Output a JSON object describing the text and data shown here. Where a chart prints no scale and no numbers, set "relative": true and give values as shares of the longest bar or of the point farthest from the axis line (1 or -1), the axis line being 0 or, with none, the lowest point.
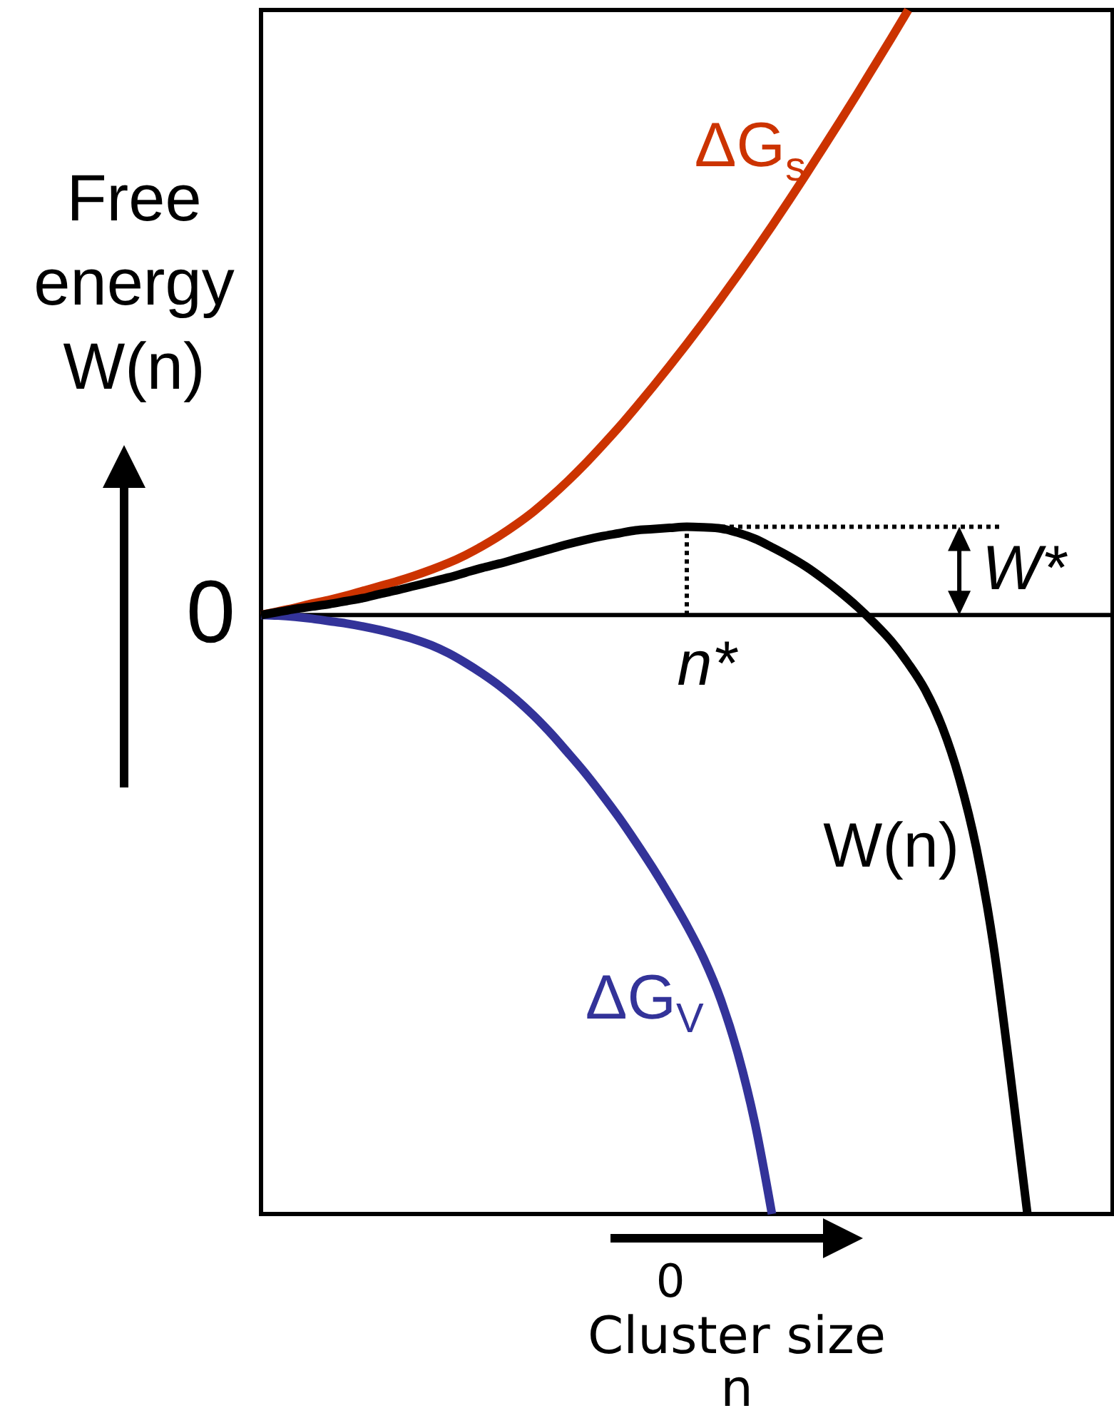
{
  "chart_data": {
    "type": "line",
    "relative": true,
    "xlabel": "Cluster size n",
    "ylabel": "Free energy W(n)",
    "line_style": "solid",
    "categories": [
      null,
      null,
      null,
      null,
      null,
      null,
      null,
      null,
      null,
      null,
      null,
      null,
      null,
      null,
      null,
      null,
      null,
      null,
      null,
      null,
      null,
      null,
      null,
      null,
      null,
      null,
      null,
      null,
      null,
      null,
      null,
      null,
      null,
      null,
      null,
      null,
      null,
      null,
      null,
      null,
      null,
      null,
      null,
      null,
      null,
      null,
      null,
      null,
      null,
      null,
      null
    ],
    "series": [
      {
        "name": "ΔG$_{s}$",
        "color": "#cc3300",
        "values": [
          0,
          0.006,
          0.012,
          0.019,
          0.025,
          0.032,
          0.04,
          0.048,
          0.056,
          0.065,
          0.075,
          0.086,
          0.099,
          0.114,
          0.131,
          0.15,
          0.171,
          0.195,
          0.221,
          0.249,
          0.279,
          0.31,
          0.343,
          0.377,
          0.412,
          0.448,
          0.485,
          0.523,
          0.562,
          0.602,
          0.643,
          0.685,
          0.728,
          0.772,
          0.816,
          0.861,
          0.907,
          0.953,
          1,
          null,
          null,
          null,
          null,
          null,
          null,
          null,
          null,
          null,
          null,
          null,
          null
        ]
      },
      {
        "name": "ΔG$_{V}$",
        "color": "#333399",
        "values": [
          0,
          -0.001,
          -0.003,
          -0.006,
          -0.01,
          -0.014,
          -0.019,
          -0.025,
          -0.032,
          -0.04,
          -0.05,
          -0.063,
          -0.079,
          -0.097,
          -0.117,
          -0.14,
          -0.166,
          -0.195,
          -0.227,
          -0.26,
          -0.296,
          -0.334,
          -0.375,
          -0.418,
          -0.464,
          -0.513,
          -0.568,
          -0.636,
          -0.725,
          -0.84,
          -0.99,
          null,
          null,
          null,
          null,
          null,
          null,
          null,
          null,
          null,
          null,
          null,
          null,
          null,
          null,
          null,
          null,
          null,
          null,
          null,
          null
        ]
      },
      {
        "name": "W(n)",
        "color": "#000000",
        "values": [
          0,
          0.005,
          0.01,
          0.014,
          0.018,
          0.023,
          0.028,
          0.035,
          0.041,
          0.048,
          0.055,
          0.062,
          0.07,
          0.078,
          0.085,
          0.093,
          0.101,
          0.109,
          0.117,
          0.124,
          0.13,
          0.135,
          0.14,
          0.142,
          0.144,
          0.146,
          0.145,
          0.143,
          0.136,
          0.126,
          0.112,
          0.097,
          0.08,
          0.06,
          0.038,
          0.014,
          -0.013,
          -0.043,
          -0.08,
          -0.124,
          -0.185,
          -0.27,
          -0.385,
          -0.545,
          -0.76,
          -0.99,
          null,
          null,
          null,
          null,
          null
        ]
      }
    ],
    "ref_lines": [
      {
        "axis": "y",
        "value": 0,
        "label": "0"
      }
    ],
    "annotations": [
      {
        "text": "n*",
        "y": 0
      },
      "W*",
      "0"
    ]
  }
}
